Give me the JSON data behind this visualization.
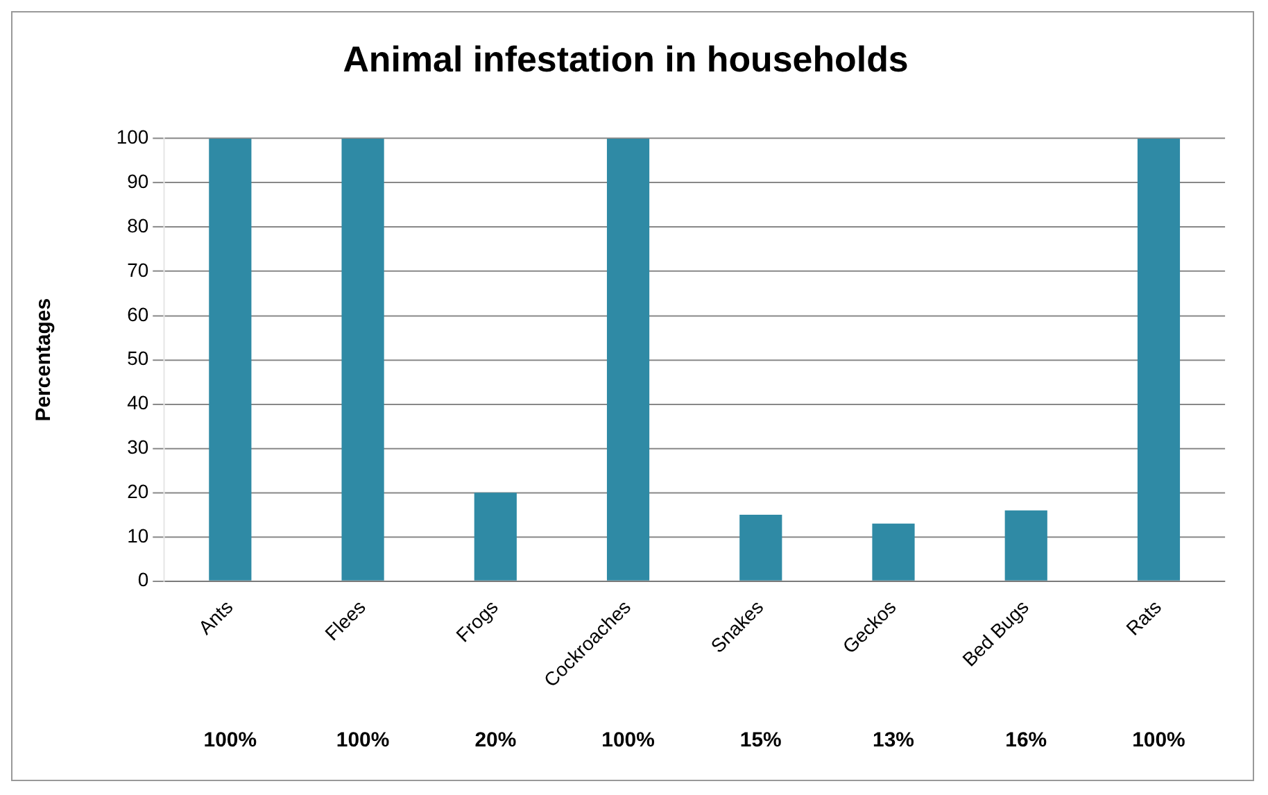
{
  "chart_data": {
    "type": "bar",
    "title": "Animal infestation in households",
    "ylabel": "Percentages",
    "categories": [
      "Ants",
      "Flees",
      "Frogs",
      "Cockroaches",
      "Snakes",
      "Geckos",
      "Bed Bugs",
      "Rats"
    ],
    "values": [
      100,
      100,
      20,
      100,
      15,
      13,
      16,
      100
    ],
    "value_labels": [
      "100%",
      "100%",
      "20%",
      "100%",
      "15%",
      "13%",
      "16%",
      "100%"
    ],
    "color": "#2f8aa5",
    "ylim": [
      0,
      100
    ],
    "yticks": [
      0,
      10,
      20,
      30,
      40,
      50,
      60,
      70,
      80,
      90,
      100
    ],
    "grid": "y",
    "legend": false
  }
}
